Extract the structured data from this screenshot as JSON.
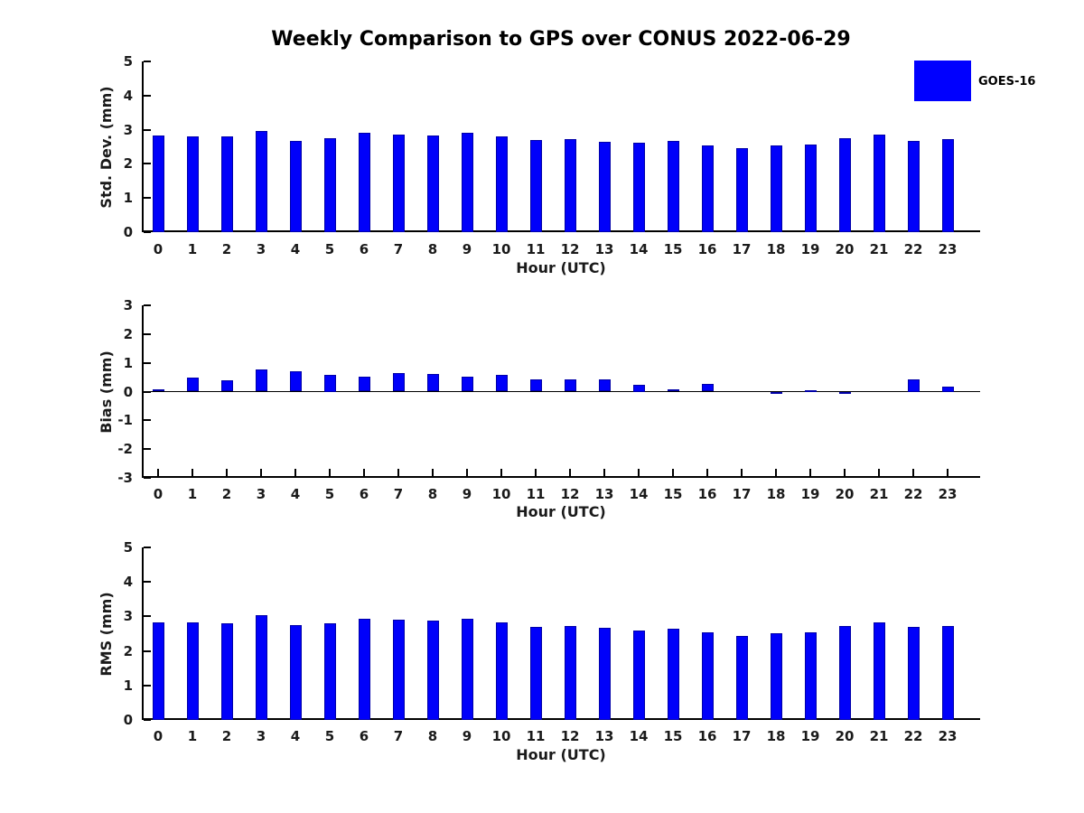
{
  "title": "Weekly Comparison to GPS over CONUS 2022-06-29",
  "legend": {
    "label": "GOES-16",
    "color": "#0000ff",
    "position": "top-right"
  },
  "colors": {
    "bar_fill": "#0000fa",
    "bar_edge": "#0000a8",
    "axis": "#000000",
    "text": "#1a1a1a",
    "background": "#ffffff"
  },
  "chart_data": [
    {
      "type": "bar",
      "title": "",
      "ylabel": "Std. Dev. (mm)",
      "xlabel": "Hour (UTC)",
      "categories": [
        "0",
        "1",
        "2",
        "3",
        "4",
        "5",
        "6",
        "7",
        "8",
        "9",
        "10",
        "11",
        "12",
        "13",
        "14",
        "15",
        "16",
        "17",
        "18",
        "19",
        "20",
        "21",
        "22",
        "23"
      ],
      "values": [
        2.83,
        2.8,
        2.8,
        2.97,
        2.67,
        2.74,
        2.9,
        2.85,
        2.82,
        2.9,
        2.8,
        2.7,
        2.73,
        2.66,
        2.61,
        2.67,
        2.54,
        2.46,
        2.53,
        2.56,
        2.75,
        2.85,
        2.68,
        2.73
      ],
      "ylim": [
        0,
        5
      ],
      "yticks": [
        0,
        1,
        2,
        3,
        4,
        5
      ],
      "grid": false,
      "series_name": "GOES-16"
    },
    {
      "type": "bar",
      "title": "",
      "ylabel": "Bias (mm)",
      "xlabel": "Hour (UTC)",
      "categories": [
        "0",
        "1",
        "2",
        "3",
        "4",
        "5",
        "6",
        "7",
        "8",
        "9",
        "10",
        "11",
        "12",
        "13",
        "14",
        "15",
        "16",
        "17",
        "18",
        "19",
        "20",
        "21",
        "22",
        "23"
      ],
      "values": [
        0.07,
        0.48,
        0.38,
        0.78,
        0.7,
        0.58,
        0.52,
        0.64,
        0.61,
        0.53,
        0.57,
        0.43,
        0.41,
        0.42,
        0.25,
        0.09,
        0.28,
        0.0,
        -0.08,
        0.05,
        -0.08,
        0.0,
        0.44,
        0.19
      ],
      "ylim": [
        -3,
        3
      ],
      "yticks": [
        -3,
        -2,
        -1,
        0,
        1,
        2,
        3
      ],
      "zero_line": true,
      "grid": false,
      "series_name": "GOES-16"
    },
    {
      "type": "bar",
      "title": "",
      "ylabel": "RMS (mm)",
      "xlabel": "Hour (UTC)",
      "categories": [
        "0",
        "1",
        "2",
        "3",
        "4",
        "5",
        "6",
        "7",
        "8",
        "9",
        "10",
        "11",
        "12",
        "13",
        "14",
        "15",
        "16",
        "17",
        "18",
        "19",
        "20",
        "21",
        "22",
        "23"
      ],
      "values": [
        2.82,
        2.84,
        2.81,
        3.03,
        2.76,
        2.81,
        2.93,
        2.91,
        2.88,
        2.93,
        2.83,
        2.7,
        2.72,
        2.67,
        2.6,
        2.64,
        2.54,
        2.43,
        2.52,
        2.54,
        2.72,
        2.84,
        2.71,
        2.72
      ],
      "ylim": [
        0,
        5
      ],
      "yticks": [
        0,
        1,
        2,
        3,
        4,
        5
      ],
      "grid": false,
      "series_name": "GOES-16"
    }
  ]
}
